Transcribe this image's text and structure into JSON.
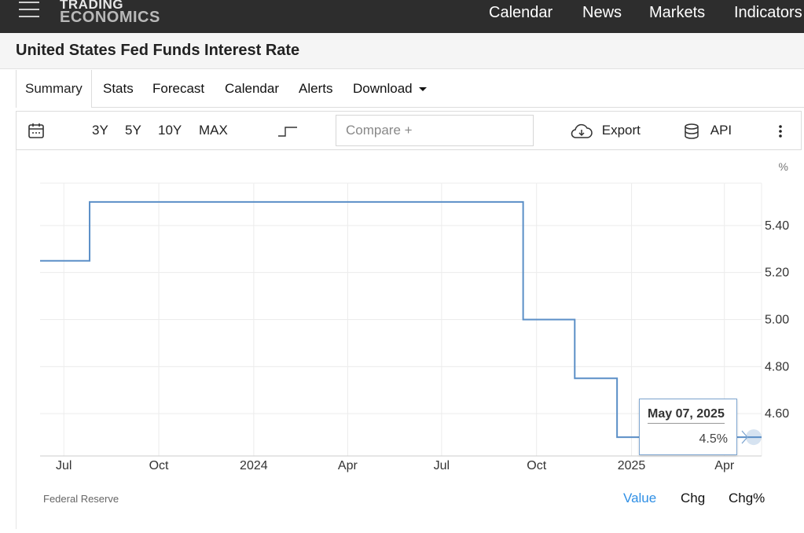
{
  "topnav": {
    "logo_line1": "TRADING",
    "logo_line2": "ECONOMICS",
    "links": [
      "Calendar",
      "News",
      "Markets",
      "Indicators"
    ]
  },
  "page_title": "United States Fed Funds Interest Rate",
  "tabs": [
    "Summary",
    "Stats",
    "Forecast",
    "Calendar",
    "Alerts",
    "Download"
  ],
  "toolbar": {
    "calendar_icon": "calendar-icon",
    "ranges": [
      "3Y",
      "5Y",
      "10Y",
      "MAX"
    ],
    "chart_type_icon": "step-line-icon",
    "compare_placeholder": "Compare +",
    "export_label": "Export",
    "api_label": "API",
    "more_icon": "more-vertical-icon"
  },
  "footer": {
    "source": "Federal Reserve",
    "modes": [
      "Value",
      "Chg",
      "Chg%"
    ],
    "active_mode": "Value"
  },
  "tooltip": {
    "date": "May 07, 2025",
    "value": "4.5%"
  },
  "colors": {
    "line": "#5b8fc7",
    "active_mode": "#2f8fe5",
    "nav_bg": "#2d2d2d"
  },
  "chart_data": {
    "type": "line",
    "step": true,
    "ylabel": "%",
    "ylim": [
      4.42,
      5.58
    ],
    "yticks": [
      4.6,
      4.8,
      5.0,
      5.2,
      5.4
    ],
    "ytick_labels": [
      "4.60",
      "4.80",
      "5.00",
      "5.20",
      "5.40"
    ],
    "xlim": [
      "2023-06-08",
      "2025-05-07"
    ],
    "xticks": [
      "2023-07-01",
      "2023-10-01",
      "2024-01-01",
      "2024-04-01",
      "2024-07-01",
      "2024-10-01",
      "2025-01-01",
      "2025-04-01"
    ],
    "xtick_labels": [
      "Jul",
      "Oct",
      "2024",
      "Apr",
      "Jul",
      "Oct",
      "2025",
      "Apr"
    ],
    "grid": true,
    "series": [
      {
        "x": [
          "2023-06-08",
          "2023-07-26",
          "2024-09-18",
          "2024-11-07",
          "2024-12-18",
          "2025-05-07"
        ],
        "values": [
          5.25,
          5.5,
          5.0,
          4.75,
          4.5,
          4.5
        ]
      }
    ]
  }
}
